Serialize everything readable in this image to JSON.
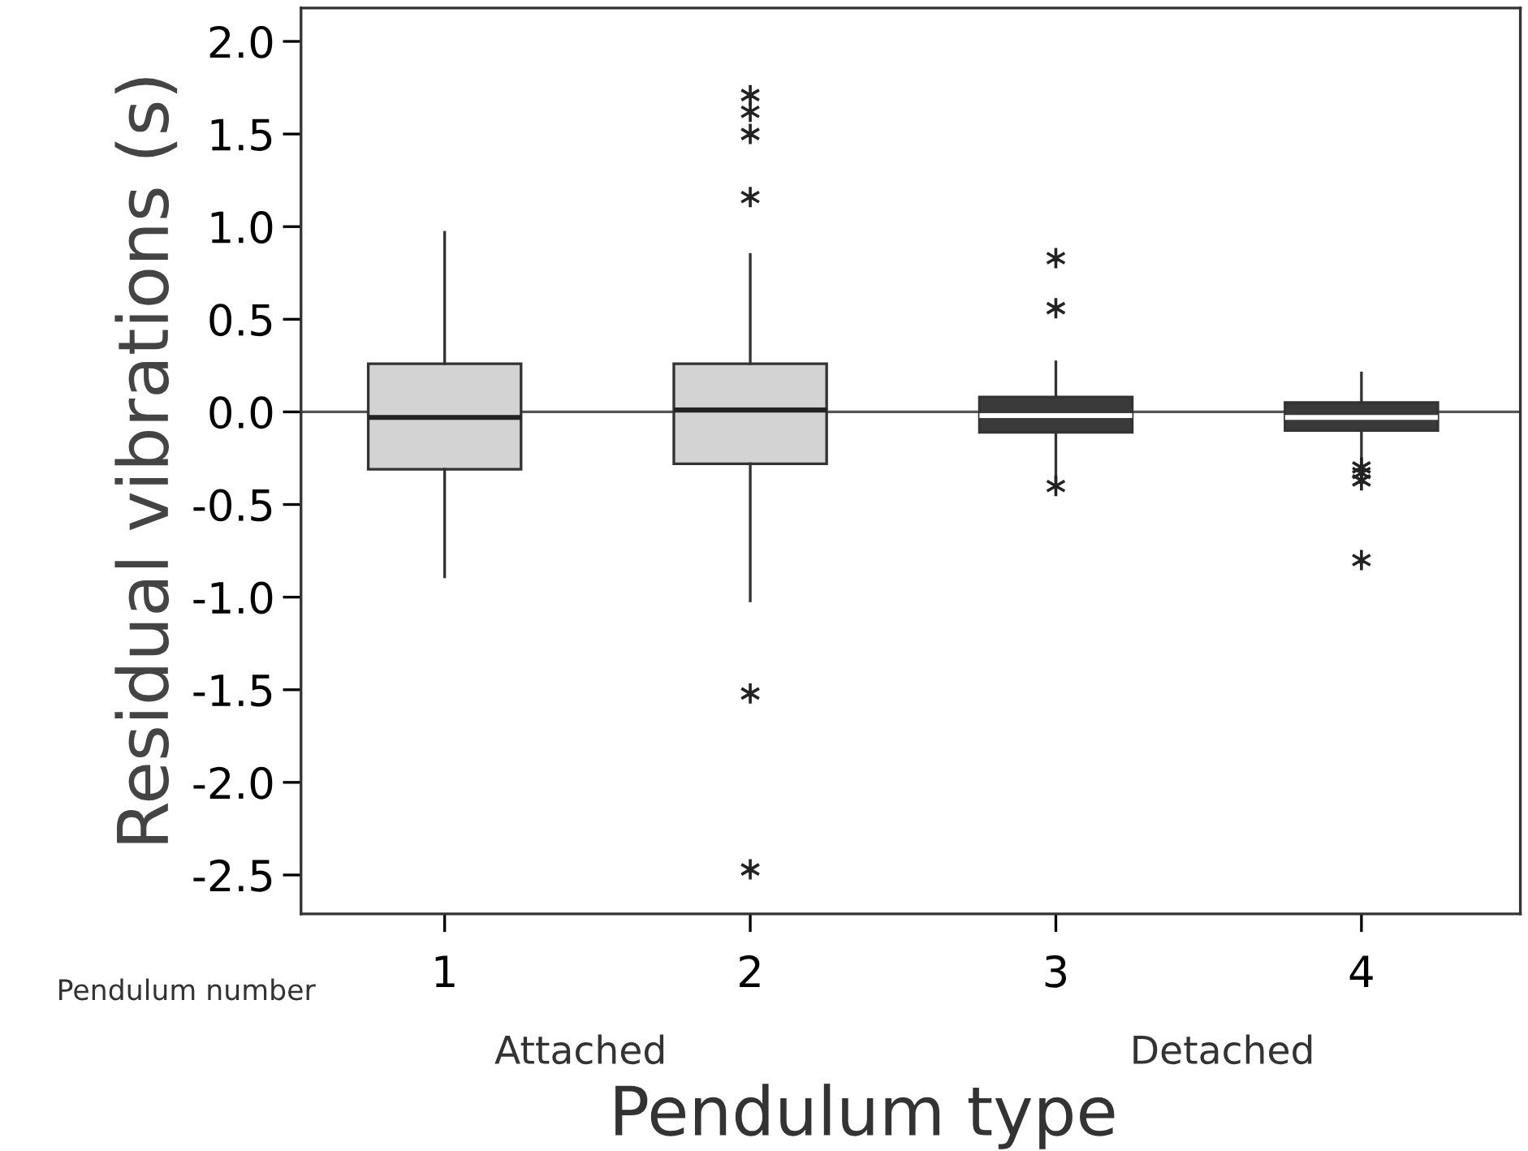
{
  "chart_data": {
    "type": "box",
    "ylabel": "Residual vibrations (s)",
    "xlabel": "Pendulum type",
    "categories": [
      "1",
      "2",
      "3",
      "4"
    ],
    "colors": [
      "#d3d3d3",
      "#d3d3d3",
      "#3a3a3a",
      "#3a3a3a"
    ],
    "boxes": [
      {
        "low": -0.89,
        "q1": -0.31,
        "median": -0.03,
        "q3": 0.26,
        "high": 0.97
      },
      {
        "low": -1.02,
        "q1": -0.28,
        "median": 0.01,
        "q3": 0.26,
        "high": 0.85,
        "outliers": [
          1.71,
          1.62,
          1.5,
          1.16,
          -1.52,
          -2.47
        ]
      },
      {
        "low": -0.37,
        "q1": -0.11,
        "median": -0.02,
        "q3": 0.08,
        "high": 0.27,
        "outliers": [
          0.83,
          0.56,
          -0.4
        ]
      },
      {
        "low": -0.28,
        "q1": -0.1,
        "median": -0.03,
        "q3": 0.05,
        "high": 0.21,
        "outliers": [
          -0.3,
          -0.33,
          -0.37,
          -0.8
        ]
      }
    ],
    "marker": "star",
    "ylim": [
      -2.71,
      2.18
    ],
    "yticks": [
      {
        "value": -2.5,
        "label": "-2.5"
      },
      {
        "value": -2,
        "label": "-2.0"
      },
      {
        "value": -1.5,
        "label": "-1.5"
      },
      {
        "value": -1,
        "label": "-1.0"
      },
      {
        "value": -0.5,
        "label": "-0.5"
      },
      {
        "value": 0,
        "label": "0.0"
      },
      {
        "value": 0.5,
        "label": "0.5"
      },
      {
        "value": 1,
        "label": "1.0"
      },
      {
        "value": 1.5,
        "label": "1.5"
      },
      {
        "value": 2,
        "label": "2.0"
      }
    ],
    "ref_lines": [
      {
        "axis": "y",
        "value": 0,
        "color": "#555555"
      }
    ],
    "grid": false,
    "annotations": [
      "Pendulum number",
      "Attached",
      "Detached"
    ]
  }
}
